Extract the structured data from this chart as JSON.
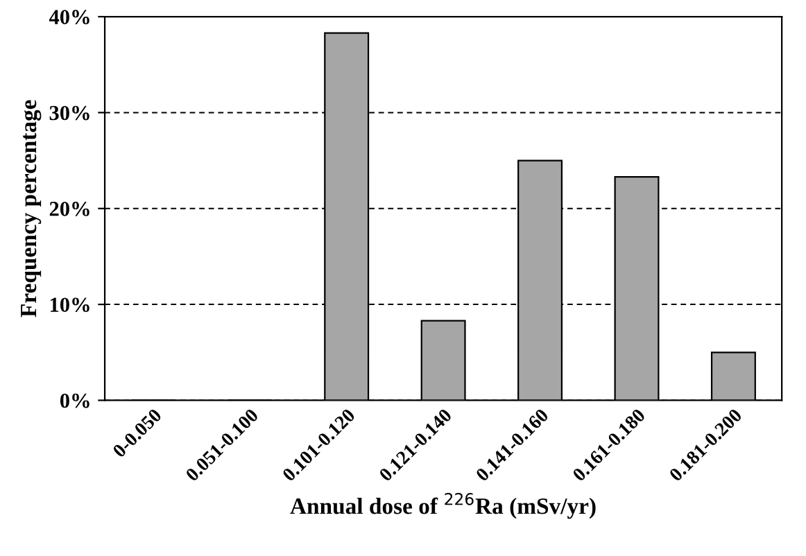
{
  "chart_data": {
    "type": "bar",
    "xlabel": "Annual dose of $^{226}$Ra (mSv/yr)",
    "ylabel": "Frequency percentage",
    "categories": [
      "0-0.050",
      "0.051-0.100",
      "0.101-0.120",
      "0.121-0.140",
      "0.141-0.160",
      "0.161-0.180",
      "0.181-0.200"
    ],
    "values": [
      0,
      0,
      38.3,
      8.3,
      25,
      23.3,
      5
    ],
    "color": "#a6a6a6",
    "ylim": [
      0,
      40
    ],
    "yticks": [
      {
        "value": 0,
        "label": "0%"
      },
      {
        "value": 10,
        "label": "10%"
      },
      {
        "value": 20,
        "label": "20%"
      },
      {
        "value": 30,
        "label": "30%"
      },
      {
        "value": 40,
        "label": "40%"
      }
    ],
    "grid": "y",
    "legend": false
  }
}
